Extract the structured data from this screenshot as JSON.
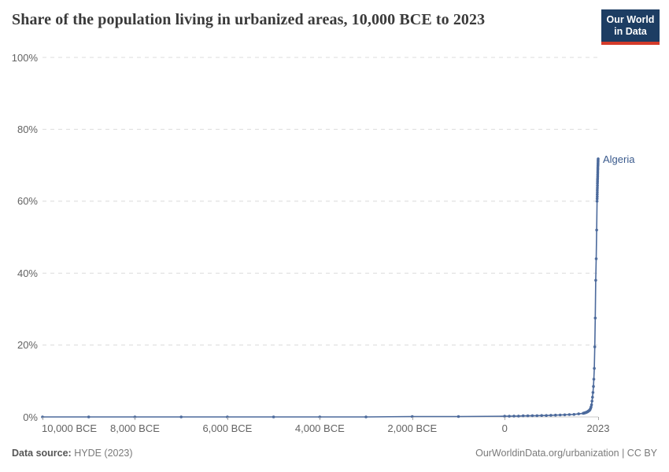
{
  "header": {
    "title": "Share of the population living in urbanized areas, 10,000 BCE to 2023",
    "logo": {
      "line1": "Our World",
      "line2": "in Data",
      "bg_color": "#1d3d63",
      "accent_color": "#d43b2a"
    }
  },
  "footer": {
    "source_label": "Data source:",
    "source_value": " HYDE (2023)",
    "credit": "OurWorldinData.org/urbanization | CC BY"
  },
  "chart_data": {
    "type": "line",
    "title": "Share of the population living in urbanized areas, 10,000 BCE to 2023",
    "xlabel": "",
    "ylabel": "",
    "xlim": [
      -10000,
      2023
    ],
    "ylim": [
      0,
      100
    ],
    "grid": "horizontal-dashed",
    "grid_color": "#dcdcdc",
    "axis_color": "#c9c9c9",
    "legend_position": "end-of-line-label",
    "y_ticks": [
      {
        "value": 0,
        "label": "0%"
      },
      {
        "value": 20,
        "label": "20%"
      },
      {
        "value": 40,
        "label": "40%"
      },
      {
        "value": 60,
        "label": "60%"
      },
      {
        "value": 80,
        "label": "80%"
      },
      {
        "value": 100,
        "label": "100%"
      }
    ],
    "x_ticks": [
      {
        "year": -10000,
        "label": "10,000 BCE"
      },
      {
        "year": -8000,
        "label": "8,000 BCE"
      },
      {
        "year": -6000,
        "label": "6,000 BCE"
      },
      {
        "year": -4000,
        "label": "4,000 BCE"
      },
      {
        "year": -2000,
        "label": "2,000 BCE"
      },
      {
        "year": 0,
        "label": "0"
      },
      {
        "year": 2023,
        "label": "2023"
      }
    ],
    "series": [
      {
        "name": "Algeria",
        "color": "#4c6a9c",
        "label_color": "#3a5a8c",
        "points": [
          [
            -10000,
            0
          ],
          [
            -9000,
            0
          ],
          [
            -8000,
            0
          ],
          [
            -7000,
            0
          ],
          [
            -6000,
            0
          ],
          [
            -5000,
            0
          ],
          [
            -4000,
            0
          ],
          [
            -3000,
            0
          ],
          [
            -2000,
            0.1
          ],
          [
            -1000,
            0.1
          ],
          [
            0,
            0.2
          ],
          [
            100,
            0.2
          ],
          [
            200,
            0.25
          ],
          [
            300,
            0.25
          ],
          [
            400,
            0.3
          ],
          [
            500,
            0.3
          ],
          [
            600,
            0.35
          ],
          [
            700,
            0.35
          ],
          [
            800,
            0.4
          ],
          [
            900,
            0.4
          ],
          [
            1000,
            0.45
          ],
          [
            1100,
            0.5
          ],
          [
            1200,
            0.55
          ],
          [
            1300,
            0.6
          ],
          [
            1400,
            0.65
          ],
          [
            1500,
            0.7
          ],
          [
            1600,
            0.85
          ],
          [
            1700,
            1.0
          ],
          [
            1710,
            1.05
          ],
          [
            1720,
            1.1
          ],
          [
            1730,
            1.12
          ],
          [
            1740,
            1.15
          ],
          [
            1750,
            1.2
          ],
          [
            1760,
            1.25
          ],
          [
            1770,
            1.3
          ],
          [
            1780,
            1.35
          ],
          [
            1790,
            1.4
          ],
          [
            1800,
            1.5
          ],
          [
            1810,
            1.6
          ],
          [
            1820,
            1.7
          ],
          [
            1830,
            1.8
          ],
          [
            1840,
            1.9
          ],
          [
            1850,
            2.1
          ],
          [
            1860,
            2.4
          ],
          [
            1870,
            2.8
          ],
          [
            1880,
            3.4
          ],
          [
            1890,
            4.4
          ],
          [
            1900,
            5.5
          ],
          [
            1910,
            6.8
          ],
          [
            1920,
            8.5
          ],
          [
            1930,
            10.5
          ],
          [
            1940,
            13.5
          ],
          [
            1950,
            19.5
          ],
          [
            1960,
            27.5
          ],
          [
            1970,
            38
          ],
          [
            1980,
            44
          ],
          [
            1990,
            52
          ],
          [
            2000,
            60
          ],
          [
            2001,
            60.7
          ],
          [
            2002,
            61.3
          ],
          [
            2003,
            61.9
          ],
          [
            2004,
            62.5
          ],
          [
            2005,
            63.1
          ],
          [
            2006,
            63.7
          ],
          [
            2007,
            64.3
          ],
          [
            2008,
            64.9
          ],
          [
            2009,
            65.4
          ],
          [
            2010,
            65.9
          ],
          [
            2011,
            66.4
          ],
          [
            2012,
            66.9
          ],
          [
            2013,
            67.4
          ],
          [
            2014,
            67.9
          ],
          [
            2015,
            68.4
          ],
          [
            2016,
            68.9
          ],
          [
            2017,
            69.3
          ],
          [
            2018,
            69.8
          ],
          [
            2019,
            70.2
          ],
          [
            2020,
            70.6
          ],
          [
            2021,
            71.0
          ],
          [
            2022,
            71.4
          ],
          [
            2023,
            71.8
          ]
        ]
      }
    ]
  }
}
